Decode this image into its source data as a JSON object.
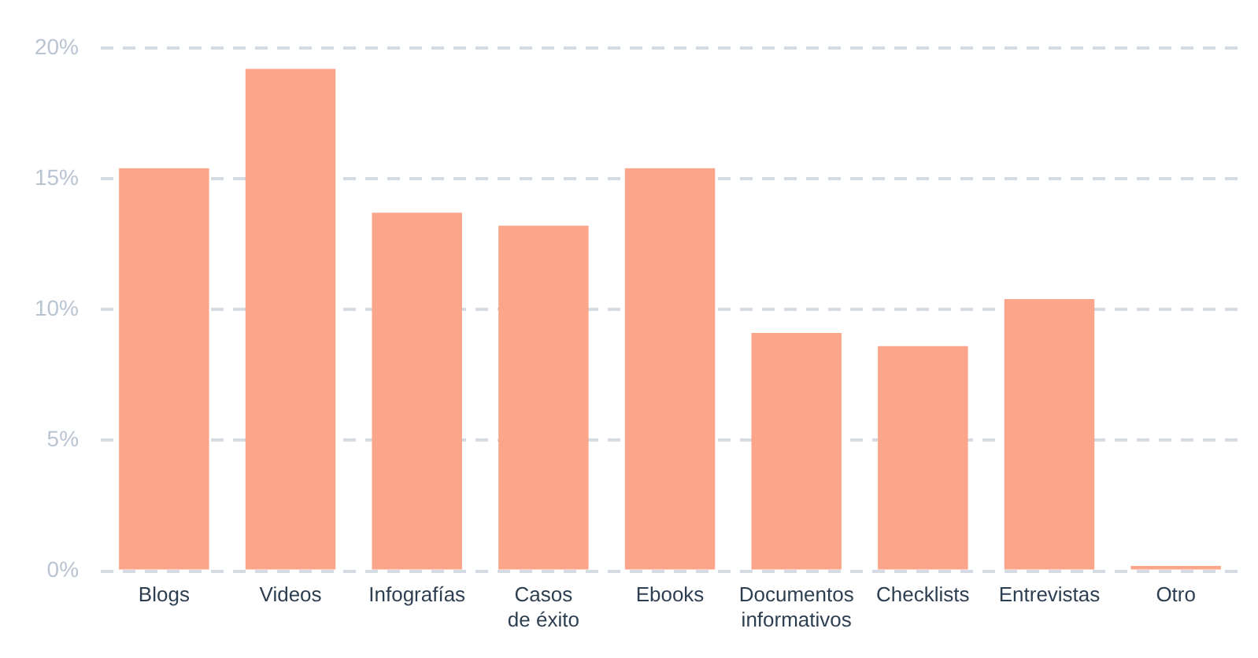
{
  "chart_data": {
    "type": "bar",
    "categories": [
      "Blogs",
      "Videos",
      "Infografías",
      "Casos de éxito",
      "Ebooks",
      "Documentos informativos",
      "Checklists",
      "Entrevistas",
      "Otro"
    ],
    "values": [
      15.4,
      19.2,
      13.7,
      13.2,
      15.4,
      9.1,
      8.6,
      10.4,
      0.2
    ],
    "color": "#fba68b",
    "ylim": [
      0,
      20
    ],
    "yticks": [
      {
        "value": 0,
        "label": "0%"
      },
      {
        "value": 5,
        "label": "5%"
      },
      {
        "value": 10,
        "label": "10%"
      },
      {
        "value": 15,
        "label": "15%"
      },
      {
        "value": 20,
        "label": "20%"
      }
    ],
    "grid": "y"
  }
}
